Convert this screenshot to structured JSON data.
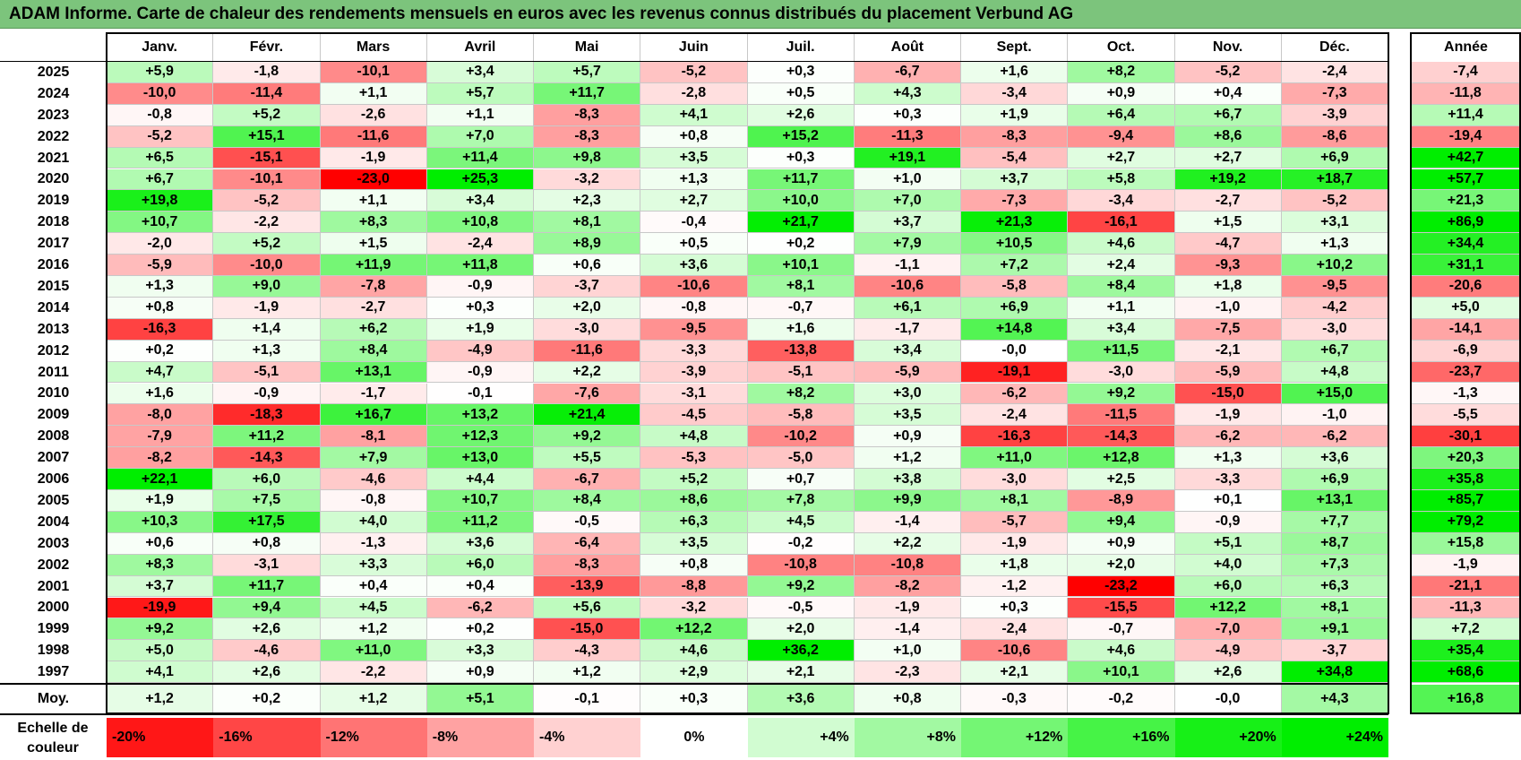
{
  "title": "ADAM Informe. Carte de chaleur des rendements mensuels en euros avec les revenus connus distribués du placement Verbund AG",
  "colors": {
    "title_bg": "#7cc47c",
    "neg_max": "#ff0000",
    "pos_max": "#00ee00",
    "neutral": "#ffffff"
  },
  "chart_data": {
    "type": "heatmap",
    "title": "ADAM Informe. Carte de chaleur des rendements mensuels en euros avec les revenus connus distribués du placement Verbund AG",
    "months": [
      "Janv.",
      "Févr.",
      "Mars",
      "Avril",
      "Mai",
      "Juin",
      "Juil.",
      "Août",
      "Sept.",
      "Oct.",
      "Nov.",
      "Déc."
    ],
    "year_header": "Année",
    "rows": [
      {
        "year": "2025",
        "m": [
          "+5,9",
          "-1,8",
          "-10,1",
          "+3,4",
          "+5,7",
          "-5,2",
          "+0,3",
          "-6,7",
          "+1,6",
          "+8,2",
          "-5,2",
          "-2,4"
        ],
        "total": "-7,4"
      },
      {
        "year": "2024",
        "m": [
          "-10,0",
          "-11,4",
          "+1,1",
          "+5,7",
          "+11,7",
          "-2,8",
          "+0,5",
          "+4,3",
          "-3,4",
          "+0,9",
          "+0,4",
          "-7,3"
        ],
        "total": "-11,8"
      },
      {
        "year": "2023",
        "m": [
          "-0,8",
          "+5,2",
          "-2,6",
          "+1,1",
          "-8,3",
          "+4,1",
          "+2,6",
          "+0,3",
          "+1,9",
          "+6,4",
          "+6,7",
          "-3,9"
        ],
        "total": "+11,4"
      },
      {
        "year": "2022",
        "m": [
          "-5,2",
          "+15,1",
          "-11,6",
          "+7,0",
          "-8,3",
          "+0,8",
          "+15,2",
          "-11,3",
          "-8,3",
          "-9,4",
          "+8,6",
          "-8,6"
        ],
        "total": "-19,4"
      },
      {
        "year": "2021",
        "m": [
          "+6,5",
          "-15,1",
          "-1,9",
          "+11,4",
          "+9,8",
          "+3,5",
          "+0,3",
          "+19,1",
          "-5,4",
          "+2,7",
          "+2,7",
          "+6,9"
        ],
        "total": "+42,7"
      },
      {
        "year": "2020",
        "m": [
          "+6,7",
          "-10,1",
          "-23,0",
          "+25,3",
          "-3,2",
          "+1,3",
          "+11,7",
          "+1,0",
          "+3,7",
          "+5,8",
          "+19,2",
          "+18,7"
        ],
        "total": "+57,7"
      },
      {
        "year": "2019",
        "m": [
          "+19,8",
          "-5,2",
          "+1,1",
          "+3,4",
          "+2,3",
          "+2,7",
          "+10,0",
          "+7,0",
          "-7,3",
          "-3,4",
          "-2,7",
          "-5,2"
        ],
        "total": "+21,3"
      },
      {
        "year": "2018",
        "m": [
          "+10,7",
          "-2,2",
          "+8,3",
          "+10,8",
          "+8,1",
          "-0,4",
          "+21,7",
          "+3,7",
          "+21,3",
          "-16,1",
          "+1,5",
          "+3,1"
        ],
        "total": "+86,9"
      },
      {
        "year": "2017",
        "m": [
          "-2,0",
          "+5,2",
          "+1,5",
          "-2,4",
          "+8,9",
          "+0,5",
          "+0,2",
          "+7,9",
          "+10,5",
          "+4,6",
          "-4,7",
          "+1,3"
        ],
        "total": "+34,4"
      },
      {
        "year": "2016",
        "m": [
          "-5,9",
          "-10,0",
          "+11,9",
          "+11,8",
          "+0,6",
          "+3,6",
          "+10,1",
          "-1,1",
          "+7,2",
          "+2,4",
          "-9,3",
          "+10,2"
        ],
        "total": "+31,1"
      },
      {
        "year": "2015",
        "m": [
          "+1,3",
          "+9,0",
          "-7,8",
          "-0,9",
          "-3,7",
          "-10,6",
          "+8,1",
          "-10,6",
          "-5,8",
          "+8,4",
          "+1,8",
          "-9,5"
        ],
        "total": "-20,6"
      },
      {
        "year": "2014",
        "m": [
          "+0,8",
          "-1,9",
          "-2,7",
          "+0,3",
          "+2,0",
          "-0,8",
          "-0,7",
          "+6,1",
          "+6,9",
          "+1,1",
          "-1,0",
          "-4,2"
        ],
        "total": "+5,0"
      },
      {
        "year": "2013",
        "m": [
          "-16,3",
          "+1,4",
          "+6,2",
          "+1,9",
          "-3,0",
          "-9,5",
          "+1,6",
          "-1,7",
          "+14,8",
          "+3,4",
          "-7,5",
          "-3,0"
        ],
        "total": "-14,1"
      },
      {
        "year": "2012",
        "m": [
          "+0,2",
          "+1,3",
          "+8,4",
          "-4,9",
          "-11,6",
          "-3,3",
          "-13,8",
          "+3,4",
          "-0,0",
          "+11,5",
          "-2,1",
          "+6,7"
        ],
        "total": "-6,9"
      },
      {
        "year": "2011",
        "m": [
          "+4,7",
          "-5,1",
          "+13,1",
          "-0,9",
          "+2,2",
          "-3,9",
          "-5,1",
          "-5,9",
          "-19,1",
          "-3,0",
          "-5,9",
          "+4,8"
        ],
        "total": "-23,7"
      },
      {
        "year": "2010",
        "m": [
          "+1,6",
          "-0,9",
          "-1,7",
          "-0,1",
          "-7,6",
          "-3,1",
          "+8,2",
          "+3,0",
          "-6,2",
          "+9,2",
          "-15,0",
          "+15,0"
        ],
        "total": "-1,3"
      },
      {
        "year": "2009",
        "m": [
          "-8,0",
          "-18,3",
          "+16,7",
          "+13,2",
          "+21,4",
          "-4,5",
          "-5,8",
          "+3,5",
          "-2,4",
          "-11,5",
          "-1,9",
          "-1,0"
        ],
        "total": "-5,5"
      },
      {
        "year": "2008",
        "m": [
          "-7,9",
          "+11,2",
          "-8,1",
          "+12,3",
          "+9,2",
          "+4,8",
          "-10,2",
          "+0,9",
          "-16,3",
          "-14,3",
          "-6,2",
          "-6,2"
        ],
        "total": "-30,1"
      },
      {
        "year": "2007",
        "m": [
          "-8,2",
          "-14,3",
          "+7,9",
          "+13,0",
          "+5,5",
          "-5,3",
          "-5,0",
          "+1,2",
          "+11,0",
          "+12,8",
          "+1,3",
          "+3,6"
        ],
        "total": "+20,3"
      },
      {
        "year": "2006",
        "m": [
          "+22,1",
          "+6,0",
          "-4,6",
          "+4,4",
          "-6,7",
          "+5,2",
          "+0,7",
          "+3,8",
          "-3,0",
          "+2,5",
          "-3,3",
          "+6,9"
        ],
        "total": "+35,8"
      },
      {
        "year": "2005",
        "m": [
          "+1,9",
          "+7,5",
          "-0,8",
          "+10,7",
          "+8,4",
          "+8,6",
          "+7,8",
          "+9,9",
          "+8,1",
          "-8,9",
          "+0,1",
          "+13,1"
        ],
        "total": "+85,7"
      },
      {
        "year": "2004",
        "m": [
          "+10,3",
          "+17,5",
          "+4,0",
          "+11,2",
          "-0,5",
          "+6,3",
          "+4,5",
          "-1,4",
          "-5,7",
          "+9,4",
          "-0,9",
          "+7,7"
        ],
        "total": "+79,2"
      },
      {
        "year": "2003",
        "m": [
          "+0,6",
          "+0,8",
          "-1,3",
          "+3,6",
          "-6,4",
          "+3,5",
          "-0,2",
          "+2,2",
          "-1,9",
          "+0,9",
          "+5,1",
          "+8,7"
        ],
        "total": "+15,8"
      },
      {
        "year": "2002",
        "m": [
          "+8,3",
          "-3,1",
          "+3,3",
          "+6,0",
          "-8,3",
          "+0,8",
          "-10,8",
          "-10,8",
          "+1,8",
          "+2,0",
          "+4,0",
          "+7,3"
        ],
        "total": "-1,9"
      },
      {
        "year": "2001",
        "m": [
          "+3,7",
          "+11,7",
          "+0,4",
          "+0,4",
          "-13,9",
          "-8,8",
          "+9,2",
          "-8,2",
          "-1,2",
          "-23,2",
          "+6,0",
          "+6,3"
        ],
        "total": "-21,1"
      },
      {
        "year": "2000",
        "m": [
          "-19,9",
          "+9,4",
          "+4,5",
          "-6,2",
          "+5,6",
          "-3,2",
          "-0,5",
          "-1,9",
          "+0,3",
          "-15,5",
          "+12,2",
          "+8,1"
        ],
        "total": "-11,3"
      },
      {
        "year": "1999",
        "m": [
          "+9,2",
          "+2,6",
          "+1,2",
          "+0,2",
          "-15,0",
          "+12,2",
          "+2,0",
          "-1,4",
          "-2,4",
          "-0,7",
          "-7,0",
          "+9,1"
        ],
        "total": "+7,2"
      },
      {
        "year": "1998",
        "m": [
          "+5,0",
          "-4,6",
          "+11,0",
          "+3,3",
          "-4,3",
          "+4,6",
          "+36,2",
          "+1,0",
          "-10,6",
          "+4,6",
          "-4,9",
          "-3,7"
        ],
        "total": "+35,4"
      },
      {
        "year": "1997",
        "m": [
          "+4,1",
          "+2,6",
          "-2,2",
          "+0,9",
          "+1,2",
          "+2,9",
          "+2,1",
          "-2,3",
          "+2,1",
          "+10,1",
          "+2,6",
          "+34,8"
        ],
        "total": "+68,6"
      }
    ],
    "average": {
      "label": "Moy.",
      "m": [
        "+1,2",
        "+0,2",
        "+1,2",
        "+5,1",
        "-0,1",
        "+0,3",
        "+3,6",
        "+0,8",
        "-0,3",
        "-0,2",
        "-0,0",
        "+4,3"
      ],
      "total": "+16,8"
    },
    "scale": {
      "label_line1": "Echelle de",
      "label_line2": "couleur",
      "steps": [
        {
          "label": "-20%",
          "value": -20
        },
        {
          "label": "-16%",
          "value": -16
        },
        {
          "label": "-12%",
          "value": -12
        },
        {
          "label": "-8%",
          "value": -8
        },
        {
          "label": "-4%",
          "value": -4
        },
        {
          "label": "0%",
          "value": 0
        },
        {
          "label": "+4%",
          "value": 4
        },
        {
          "label": "+8%",
          "value": 8
        },
        {
          "label": "+12%",
          "value": 12
        },
        {
          "label": "+16%",
          "value": 16
        },
        {
          "label": "+20%",
          "value": 20
        },
        {
          "label": "+24%",
          "value": 24
        }
      ]
    }
  }
}
